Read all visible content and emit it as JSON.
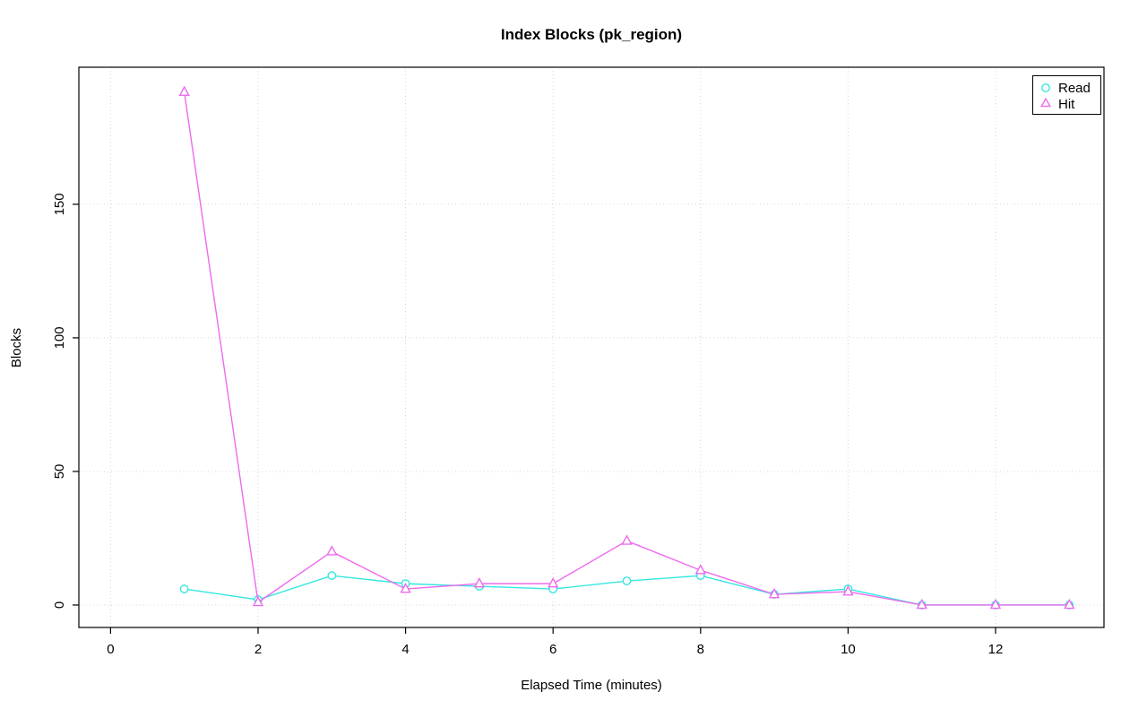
{
  "chart_data": {
    "type": "line",
    "title": "Index Blocks (pk_region)",
    "xlabel": "Elapsed Time (minutes)",
    "ylabel": "Blocks",
    "grid": true,
    "legend_position": "top-right",
    "x_ticks": [
      0,
      2,
      4,
      6,
      8,
      10,
      12
    ],
    "y_ticks": [
      0,
      50,
      100,
      150
    ],
    "xlim": [
      -0.43,
      13.47
    ],
    "ylim": [
      -8.4,
      201.3
    ],
    "x": [
      1,
      2,
      3,
      4,
      5,
      6,
      7,
      8,
      9,
      10,
      11,
      12,
      13
    ],
    "series": [
      {
        "name": "Read",
        "marker": "circle",
        "color": "#35E6E0",
        "values": [
          6,
          2,
          11,
          8,
          7,
          6,
          9,
          11,
          4,
          6,
          0,
          0,
          0
        ]
      },
      {
        "name": "Hit",
        "marker": "triangle",
        "color": "#EE6AEE",
        "values": [
          192,
          1,
          20,
          6,
          8,
          8,
          24,
          13,
          4,
          5,
          0,
          0,
          0
        ]
      }
    ]
  }
}
